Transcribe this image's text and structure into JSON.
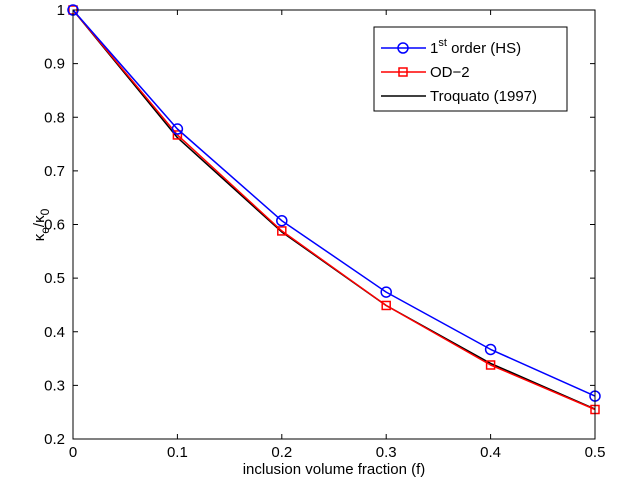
{
  "chart_data": {
    "type": "line",
    "xlabel": "inclusion volume fraction (f)",
    "ylabel": {
      "base": "κ",
      "sub1": "e",
      "sep": "/κ",
      "sub2": "0"
    },
    "xlim": [
      0,
      0.5
    ],
    "ylim": [
      0.2,
      1.0
    ],
    "xticks": [
      0,
      0.1,
      0.2,
      0.3,
      0.4,
      0.5
    ],
    "xtick_labels": [
      "0",
      "0.1",
      "0.2",
      "0.3",
      "0.4",
      "0.5"
    ],
    "yticks": [
      0.2,
      0.3,
      0.4,
      0.5,
      0.6,
      0.7,
      0.8,
      0.9,
      1.0
    ],
    "ytick_labels": [
      "0.2",
      "0.3",
      "0.4",
      "0.5",
      "0.6",
      "0.7",
      "0.8",
      "0.9",
      "1"
    ],
    "grid": false,
    "legend_position": "top-right",
    "x": [
      0,
      0.1,
      0.2,
      0.3,
      0.4,
      0.5
    ],
    "series": [
      {
        "name": "1st order (HS)",
        "label_main": "1",
        "label_sup": "st",
        "label_rest": " order (HS)",
        "color": "#0000ff",
        "marker": "circle",
        "values": [
          1.0,
          0.778,
          0.607,
          0.474,
          0.367,
          0.28
        ]
      },
      {
        "name": "OD−2",
        "color": "#ff0000",
        "marker": "square",
        "values": [
          1.0,
          0.767,
          0.588,
          0.449,
          0.338,
          0.255
        ]
      },
      {
        "name": "Troquato (1997)",
        "color": "#000000",
        "marker": "none",
        "values": [
          1.0,
          0.762,
          0.586,
          0.449,
          0.341,
          0.256
        ]
      }
    ]
  }
}
